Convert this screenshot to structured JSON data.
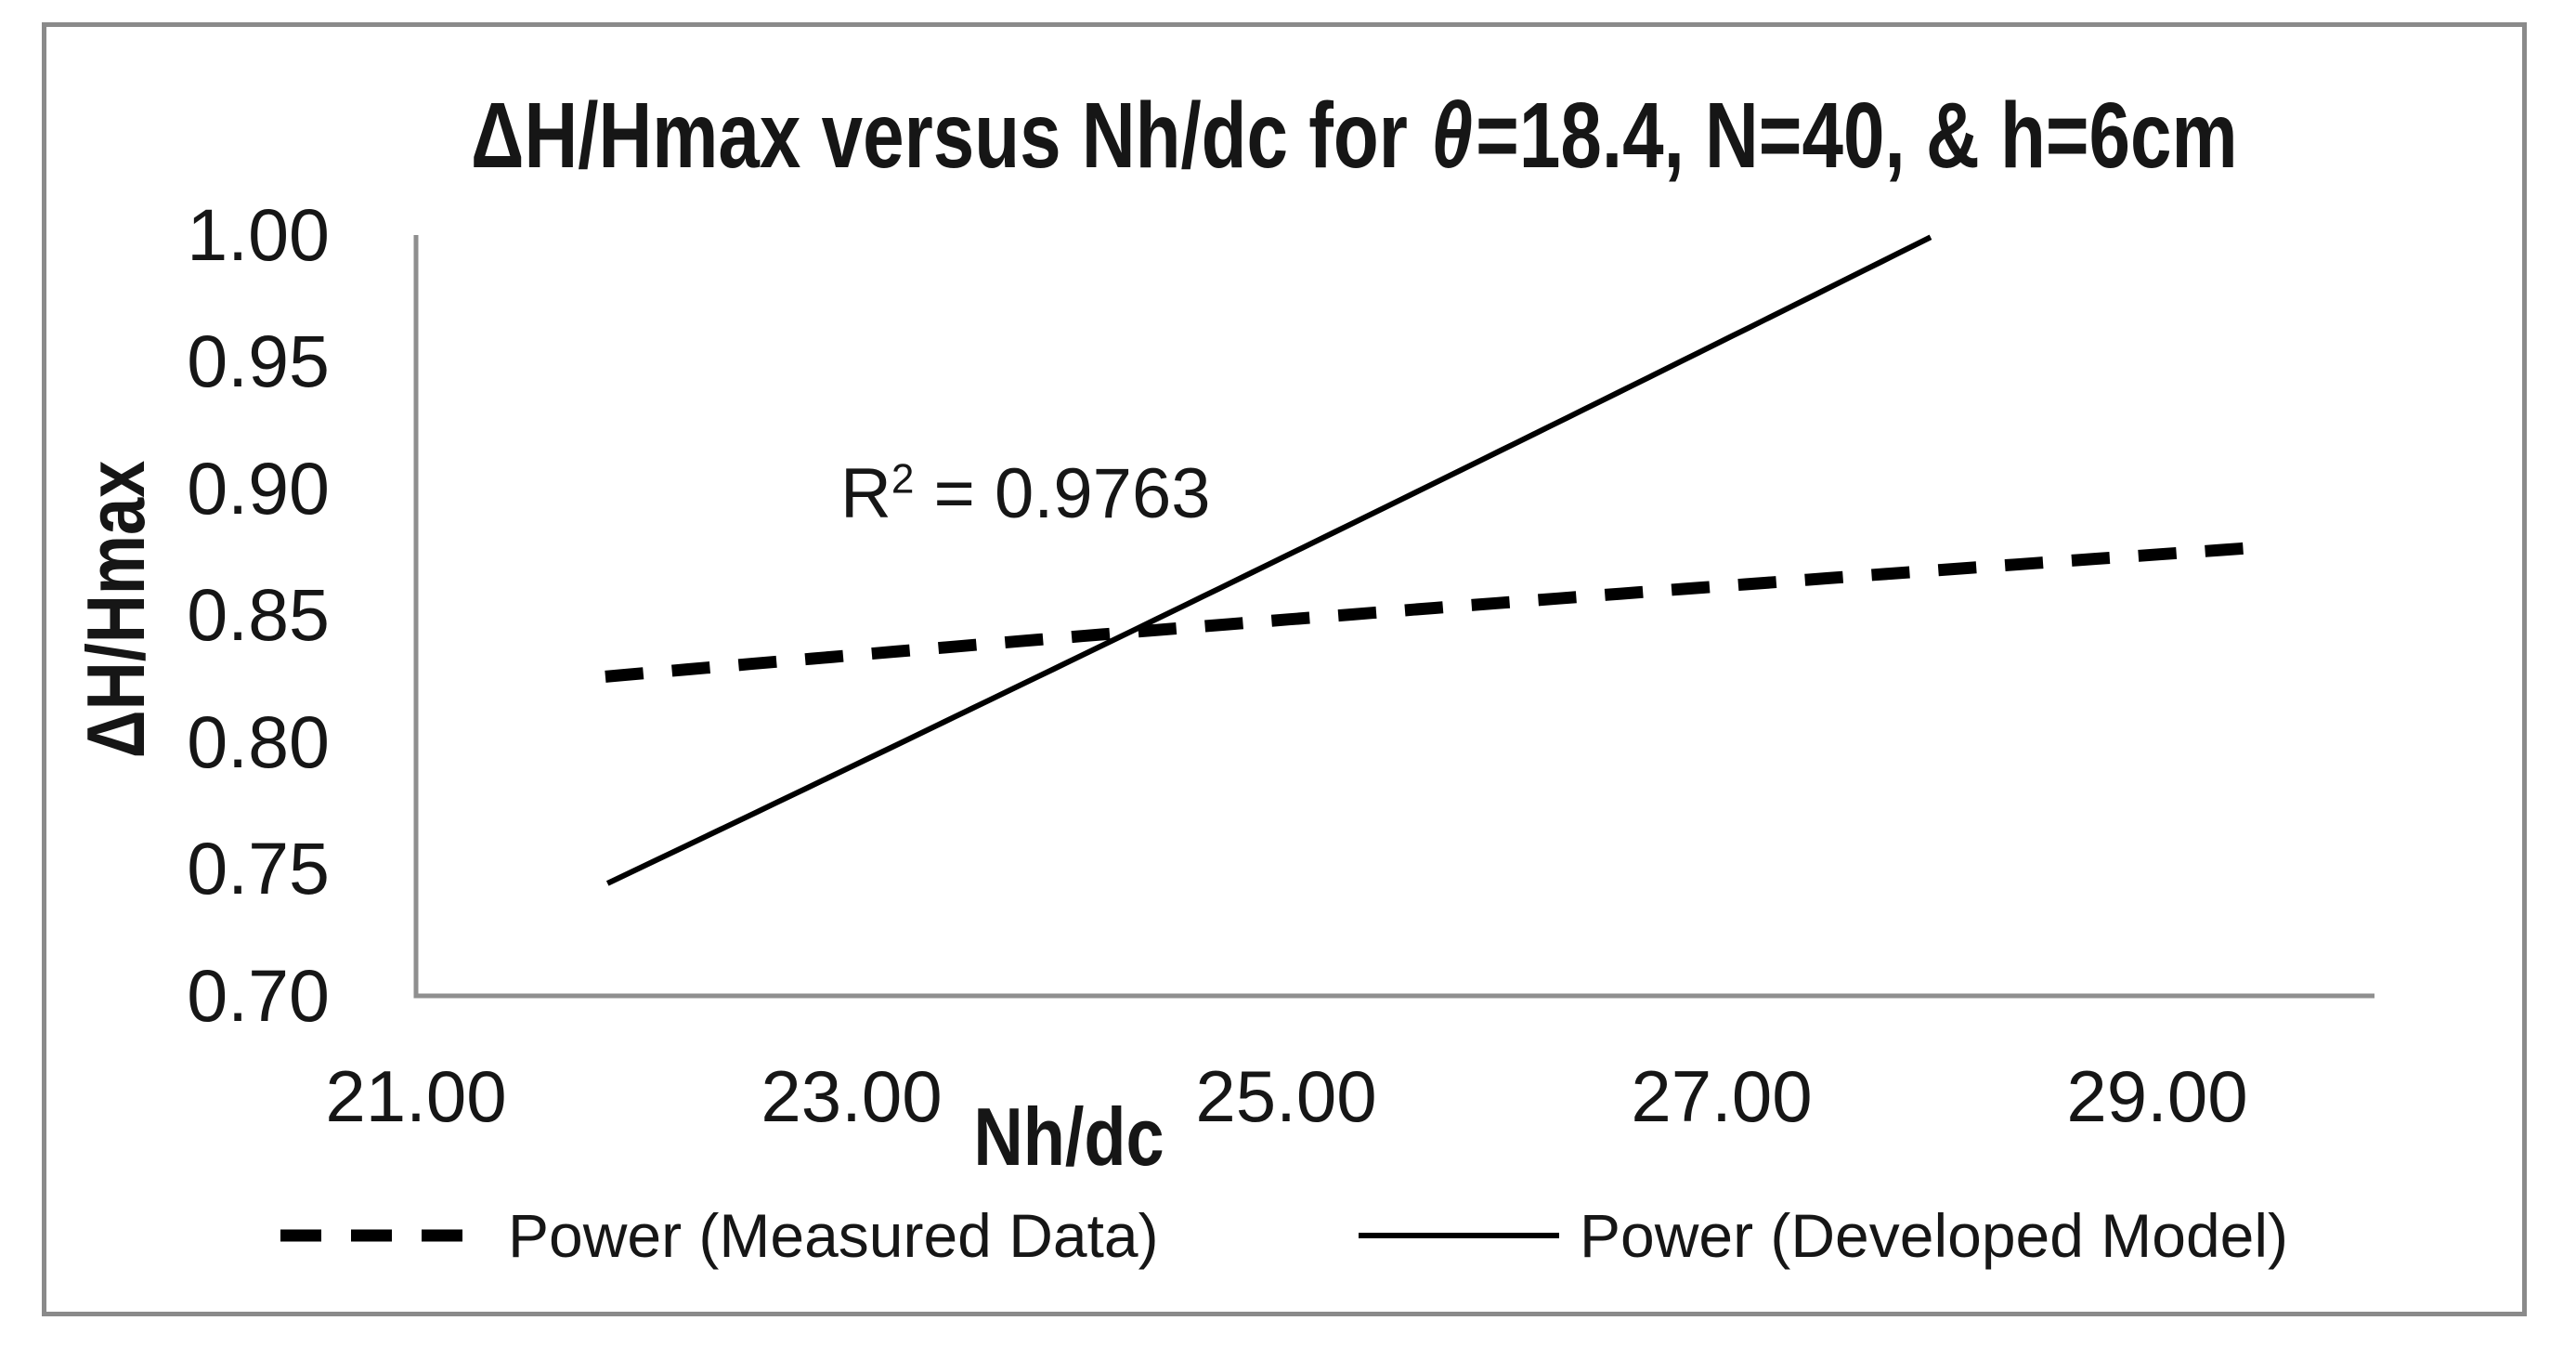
{
  "figure": {
    "title_parts": {
      "prefix": "ΔH/Hmax versus Nh/dc for ",
      "theta": "θ",
      "suffix": "=18.4, N=40, & h=6cm"
    },
    "annotation_parts": {
      "base": "R",
      "sup": "2",
      "rest": " = 0.9763"
    }
  },
  "chart_data": {
    "type": "line",
    "title": "ΔH/Hmax versus Nh/dc for θ=18.4, N=40, & h=6cm",
    "xlabel": "Nh/dc",
    "ylabel": "ΔH/Hmax",
    "xlim": [
      21.0,
      30.0
    ],
    "ylim": [
      0.7,
      1.0
    ],
    "x_ticks": [
      "21.00",
      "23.00",
      "25.00",
      "27.00",
      "29.00"
    ],
    "y_ticks": [
      "1.00",
      "0.95",
      "0.90",
      "0.85",
      "0.80",
      "0.75",
      "0.70"
    ],
    "grid": false,
    "legend_position": "bottom",
    "annotation": "R² = 0.9763",
    "colors": {
      "series": "#000000",
      "axis": "#8f8f8f",
      "frame": "#8a8a8a",
      "text": "#161616"
    },
    "series": [
      {
        "name": "Power (Measured Data)",
        "type": "power-trendline",
        "line_style": "dashed",
        "color": "#000000",
        "a": 0.4445,
        "b": 0.2008,
        "x_range": [
          21.87,
          29.49
        ],
        "points": [
          [
            21.87,
            0.826
          ],
          [
            23.0,
            0.834
          ],
          [
            24.0,
            0.842
          ],
          [
            25.0,
            0.849
          ],
          [
            26.0,
            0.855
          ],
          [
            27.0,
            0.862
          ],
          [
            28.0,
            0.868
          ],
          [
            29.0,
            0.874
          ],
          [
            29.49,
            0.877
          ]
        ]
      },
      {
        "name": "Power (Developed Model)",
        "type": "power-trendline",
        "line_style": "solid",
        "color": "#000000",
        "a": 0.01832,
        "b": 1.2006,
        "x_range": [
          21.88,
          27.96
        ],
        "points": [
          [
            21.88,
            0.745
          ],
          [
            23.0,
            0.79
          ],
          [
            24.0,
            0.832
          ],
          [
            25.0,
            0.874
          ],
          [
            26.0,
            0.916
          ],
          [
            27.0,
            0.958
          ],
          [
            27.96,
            1.0
          ]
        ]
      }
    ]
  }
}
